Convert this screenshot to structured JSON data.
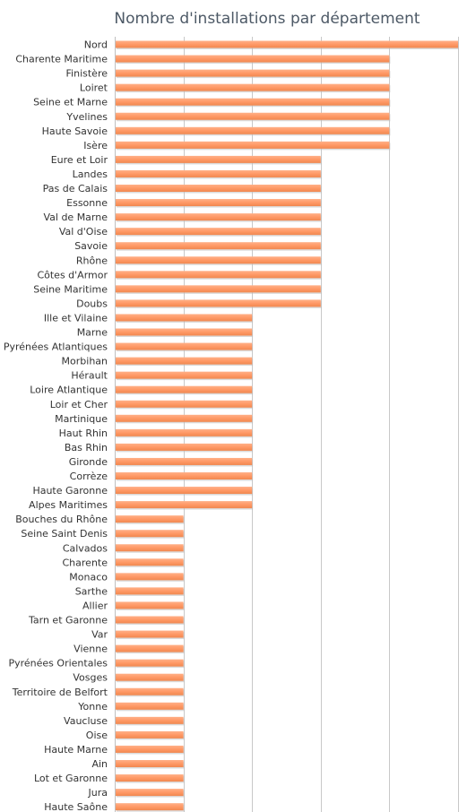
{
  "chart_data": {
    "type": "bar",
    "orientation": "horizontal",
    "title": "Nombre d'installations par département",
    "xlabel": "",
    "ylabel": "",
    "xlim": [
      0,
      5
    ],
    "grid": true,
    "legend": "none",
    "color": "#ff9966",
    "categories": [
      "Nord",
      "Charente Maritime",
      "Finistère",
      "Loiret",
      "Seine et Marne",
      "Yvelines",
      "Haute Savoie",
      "Isère",
      "Eure et Loir",
      "Landes",
      "Pas de Calais",
      "Essonne",
      "Val de Marne",
      "Val d'Oise",
      "Savoie",
      "Rhône",
      "Côtes d'Armor",
      "Seine Maritime",
      "Doubs",
      "Ille et Vilaine",
      "Marne",
      "Pyrénées Atlantiques",
      "Morbihan",
      "Hérault",
      "Loire Atlantique",
      "Loir et Cher",
      "Martinique",
      "Haut Rhin",
      "Bas Rhin",
      "Gironde",
      "Corrèze",
      "Haute Garonne",
      "Alpes Maritimes",
      "Bouches du Rhône",
      "Seine Saint Denis",
      "Calvados",
      "Charente",
      "Monaco",
      "Sarthe",
      "Allier",
      "Tarn et Garonne",
      "Var",
      "Vienne",
      "Pyrénées Orientales",
      "Vosges",
      "Territoire de Belfort",
      "Yonne",
      "Vaucluse",
      "Oise",
      "Haute Marne",
      "Ain",
      "Lot et Garonne",
      "Jura",
      "Haute Saône"
    ],
    "values": [
      5,
      4,
      4,
      4,
      4,
      4,
      4,
      4,
      3,
      3,
      3,
      3,
      3,
      3,
      3,
      3,
      3,
      3,
      3,
      2,
      2,
      2,
      2,
      2,
      2,
      2,
      2,
      2,
      2,
      2,
      2,
      2,
      2,
      1,
      1,
      1,
      1,
      1,
      1,
      1,
      1,
      1,
      1,
      1,
      1,
      1,
      1,
      1,
      1,
      1,
      1,
      1,
      1,
      1
    ]
  }
}
